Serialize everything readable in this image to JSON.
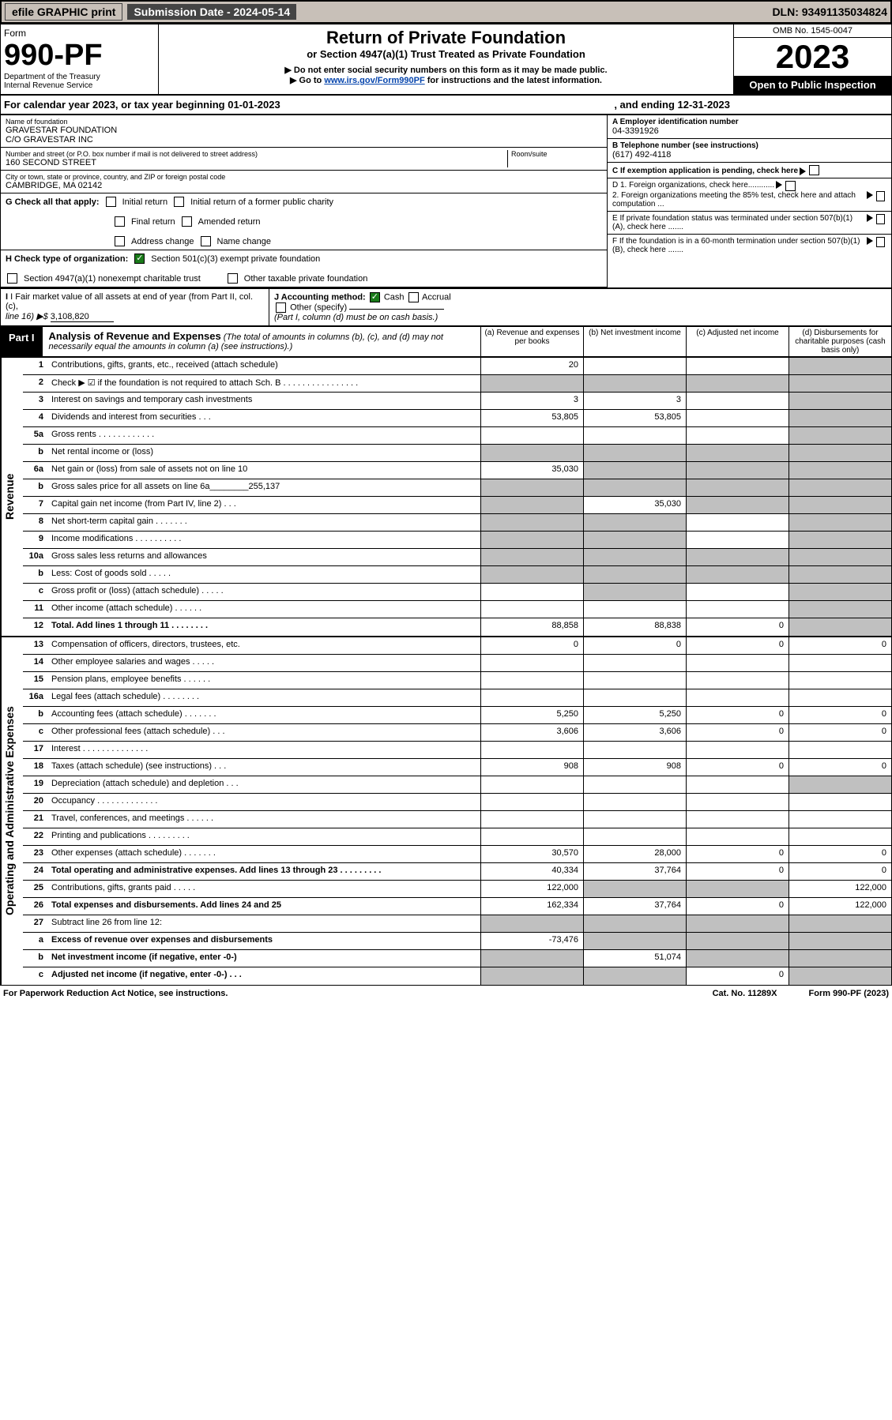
{
  "topbar": {
    "efile": "efile GRAPHIC print",
    "subdate_label": "Submission Date - 2024-05-14",
    "dln": "DLN: 93491135034824"
  },
  "header": {
    "form_label": "Form",
    "form_number": "990-PF",
    "dept": "Department of the Treasury",
    "irs": "Internal Revenue Service",
    "title": "Return of Private Foundation",
    "subtitle": "or Section 4947(a)(1) Trust Treated as Private Foundation",
    "note1": "▶ Do not enter social security numbers on this form as it may be made public.",
    "note2_pre": "▶ Go to ",
    "note2_link": "www.irs.gov/Form990PF",
    "note2_post": " for instructions and the latest information.",
    "omb": "OMB No. 1545-0047",
    "year": "2023",
    "open": "Open to Public Inspection"
  },
  "calyear": {
    "text": "For calendar year 2023, or tax year beginning 01-01-2023",
    "end": ", and ending 12-31-2023"
  },
  "id": {
    "name_label": "Name of foundation",
    "name": "GRAVESTAR FOUNDATION",
    "co": "C/O GRAVESTAR INC",
    "street_label": "Number and street (or P.O. box number if mail is not delivered to street address)",
    "street": "160 SECOND STREET",
    "room_label": "Room/suite",
    "city_label": "City or town, state or province, country, and ZIP or foreign postal code",
    "city": "CAMBRIDGE, MA  02142",
    "ein_label": "A Employer identification number",
    "ein": "04-3391926",
    "phone_label": "B Telephone number (see instructions)",
    "phone": "(617) 492-4118",
    "c_label": "C If exemption application is pending, check here"
  },
  "g": {
    "label": "G Check all that apply:",
    "opts": [
      "Initial return",
      "Initial return of a former public charity",
      "Final return",
      "Amended return",
      "Address change",
      "Name change"
    ]
  },
  "d": {
    "d1": "D 1. Foreign organizations, check here............",
    "d2": "2. Foreign organizations meeting the 85% test, check here and attach computation ...",
    "e": "E  If private foundation status was terminated under section 507(b)(1)(A), check here .......",
    "f": "F  If the foundation is in a 60-month termination under section 507(b)(1)(B), check here ......."
  },
  "h": {
    "label": "H Check type of organization:",
    "o1": "Section 501(c)(3) exempt private foundation",
    "o2": "Section 4947(a)(1) nonexempt charitable trust",
    "o3": "Other taxable private foundation"
  },
  "i": {
    "label": "I Fair market value of all assets at end of year (from Part II, col. (c),",
    "line": "line 16) ▶$",
    "value": "3,108,820"
  },
  "j": {
    "label": "J Accounting method:",
    "cash": "Cash",
    "accrual": "Accrual",
    "other": "Other (specify)",
    "note": "(Part I, column (d) must be on cash basis.)"
  },
  "part1": {
    "tag": "Part I",
    "title": "Analysis of Revenue and Expenses",
    "desc": "(The total of amounts in columns (b), (c), and (d) may not necessarily equal the amounts in column (a) (see instructions).)",
    "cols": [
      "(a)   Revenue and expenses per books",
      "(b)   Net investment income",
      "(c)   Adjusted net income",
      "(d)   Disbursements for charitable purposes (cash basis only)"
    ]
  },
  "revenue_side": "Revenue",
  "opex_side": "Operating and Administrative Expenses",
  "rows_rev": [
    {
      "n": "1",
      "t": "Contributions, gifts, grants, etc., received (attach schedule)",
      "a": "20",
      "b": "",
      "c": "",
      "d": "",
      "grey": [
        "d"
      ]
    },
    {
      "n": "2",
      "t": "Check ▶ ☑ if the foundation is not required to attach Sch. B   .  .  .  .  .  .  .  .  .  .  .  .  .  .  .  .",
      "a": "",
      "b": "",
      "c": "",
      "d": "",
      "grey": [
        "a",
        "b",
        "c",
        "d"
      ]
    },
    {
      "n": "3",
      "t": "Interest on savings and temporary cash investments",
      "a": "3",
      "b": "3",
      "c": "",
      "d": "",
      "grey": [
        "d"
      ]
    },
    {
      "n": "4",
      "t": "Dividends and interest from securities  .  .  .",
      "a": "53,805",
      "b": "53,805",
      "c": "",
      "d": "",
      "grey": [
        "d"
      ]
    },
    {
      "n": "5a",
      "t": "Gross rents   .  .  .  .  .  .  .  .  .  .  .  .",
      "a": "",
      "b": "",
      "c": "",
      "d": "",
      "grey": [
        "d"
      ]
    },
    {
      "n": "b",
      "t": "Net rental income or (loss)  ",
      "a": "",
      "b": "",
      "c": "",
      "d": "",
      "grey": [
        "a",
        "b",
        "c",
        "d"
      ]
    },
    {
      "n": "6a",
      "t": "Net gain or (loss) from sale of assets not on line 10",
      "a": "35,030",
      "b": "",
      "c": "",
      "d": "",
      "grey": [
        "b",
        "c",
        "d"
      ]
    },
    {
      "n": "b",
      "t": "Gross sales price for all assets on line 6a________255,137",
      "a": "",
      "b": "",
      "c": "",
      "d": "",
      "grey": [
        "a",
        "b",
        "c",
        "d"
      ]
    },
    {
      "n": "7",
      "t": "Capital gain net income (from Part IV, line 2)  .  .  .",
      "a": "",
      "b": "35,030",
      "c": "",
      "d": "",
      "grey": [
        "a",
        "c",
        "d"
      ]
    },
    {
      "n": "8",
      "t": "Net short-term capital gain  .  .  .  .  .  .  .",
      "a": "",
      "b": "",
      "c": "",
      "d": "",
      "grey": [
        "a",
        "b",
        "d"
      ]
    },
    {
      "n": "9",
      "t": "Income modifications .  .  .  .  .  .  .  .  .  .",
      "a": "",
      "b": "",
      "c": "",
      "d": "",
      "grey": [
        "a",
        "b",
        "d"
      ]
    },
    {
      "n": "10a",
      "t": "Gross sales less returns and allowances",
      "a": "",
      "b": "",
      "c": "",
      "d": "",
      "grey": [
        "a",
        "b",
        "c",
        "d"
      ]
    },
    {
      "n": "b",
      "t": "Less: Cost of goods sold  .  .  .  .  .",
      "a": "",
      "b": "",
      "c": "",
      "d": "",
      "grey": [
        "a",
        "b",
        "c",
        "d"
      ]
    },
    {
      "n": "c",
      "t": "Gross profit or (loss) (attach schedule)  .  .  .  .  .",
      "a": "",
      "b": "",
      "c": "",
      "d": "",
      "grey": [
        "b",
        "d"
      ]
    },
    {
      "n": "11",
      "t": "Other income (attach schedule)  .  .  .  .  .  .",
      "a": "",
      "b": "",
      "c": "",
      "d": "",
      "grey": [
        "d"
      ]
    },
    {
      "n": "12",
      "t": "Total. Add lines 1 through 11  .  .  .  .  .  .  .  .",
      "a": "88,858",
      "b": "88,838",
      "c": "0",
      "d": "",
      "grey": [
        "d"
      ],
      "bold": true
    }
  ],
  "rows_exp": [
    {
      "n": "13",
      "t": "Compensation of officers, directors, trustees, etc.",
      "a": "0",
      "b": "0",
      "c": "0",
      "d": "0"
    },
    {
      "n": "14",
      "t": "Other employee salaries and wages  .  .  .  .  .",
      "a": "",
      "b": "",
      "c": "",
      "d": ""
    },
    {
      "n": "15",
      "t": "Pension plans, employee benefits .  .  .  .  .  .",
      "a": "",
      "b": "",
      "c": "",
      "d": ""
    },
    {
      "n": "16a",
      "t": "Legal fees (attach schedule) .  .  .  .  .  .  .  .",
      "a": "",
      "b": "",
      "c": "",
      "d": ""
    },
    {
      "n": "b",
      "t": "Accounting fees (attach schedule) .  .  .  .  .  .  .",
      "a": "5,250",
      "b": "5,250",
      "c": "0",
      "d": "0"
    },
    {
      "n": "c",
      "t": "Other professional fees (attach schedule)  .  .  .",
      "a": "3,606",
      "b": "3,606",
      "c": "0",
      "d": "0"
    },
    {
      "n": "17",
      "t": "Interest .  .  .  .  .  .  .  .  .  .  .  .  .  .",
      "a": "",
      "b": "",
      "c": "",
      "d": ""
    },
    {
      "n": "18",
      "t": "Taxes (attach schedule) (see instructions)  .  .  .",
      "a": "908",
      "b": "908",
      "c": "0",
      "d": "0"
    },
    {
      "n": "19",
      "t": "Depreciation (attach schedule) and depletion  .  .  .",
      "a": "",
      "b": "",
      "c": "",
      "d": "",
      "grey": [
        "d"
      ]
    },
    {
      "n": "20",
      "t": "Occupancy .  .  .  .  .  .  .  .  .  .  .  .  .",
      "a": "",
      "b": "",
      "c": "",
      "d": ""
    },
    {
      "n": "21",
      "t": "Travel, conferences, and meetings .  .  .  .  .  .",
      "a": "",
      "b": "",
      "c": "",
      "d": ""
    },
    {
      "n": "22",
      "t": "Printing and publications .  .  .  .  .  .  .  .  .",
      "a": "",
      "b": "",
      "c": "",
      "d": ""
    },
    {
      "n": "23",
      "t": "Other expenses (attach schedule) .  .  .  .  .  .  .",
      "a": "30,570",
      "b": "28,000",
      "c": "0",
      "d": "0"
    },
    {
      "n": "24",
      "t": "Total operating and administrative expenses. Add lines 13 through 23  .  .  .  .  .  .  .  .  .",
      "a": "40,334",
      "b": "37,764",
      "c": "0",
      "d": "0",
      "bold": true
    },
    {
      "n": "25",
      "t": "Contributions, gifts, grants paid  .  .  .  .  .",
      "a": "122,000",
      "b": "",
      "c": "",
      "d": "122,000",
      "grey": [
        "b",
        "c"
      ]
    },
    {
      "n": "26",
      "t": "Total expenses and disbursements. Add lines 24 and 25",
      "a": "162,334",
      "b": "37,764",
      "c": "0",
      "d": "122,000",
      "bold": true
    },
    {
      "n": "27",
      "t": "Subtract line 26 from line 12:",
      "a": "",
      "b": "",
      "c": "",
      "d": "",
      "grey": [
        "a",
        "b",
        "c",
        "d"
      ]
    },
    {
      "n": "a",
      "t": "Excess of revenue over expenses and disbursements",
      "a": "-73,476",
      "b": "",
      "c": "",
      "d": "",
      "grey": [
        "b",
        "c",
        "d"
      ],
      "bold": true
    },
    {
      "n": "b",
      "t": "Net investment income (if negative, enter -0-)",
      "a": "",
      "b": "51,074",
      "c": "",
      "d": "",
      "grey": [
        "a",
        "c",
        "d"
      ],
      "bold": true
    },
    {
      "n": "c",
      "t": "Adjusted net income (if negative, enter -0-)  .  .  .",
      "a": "",
      "b": "",
      "c": "0",
      "d": "",
      "grey": [
        "a",
        "b",
        "d"
      ],
      "bold": true
    }
  ],
  "footer": {
    "left": "For Paperwork Reduction Act Notice, see instructions.",
    "mid": "Cat. No. 11289X",
    "right": "Form 990-PF (2023)"
  },
  "colors": {
    "topbar_bg": "#c8c0b8",
    "subdate_bg": "#444444",
    "black": "#000000",
    "grey_cell": "#c0c0c0",
    "link": "#0645ad",
    "check_green": "#1a7a1a"
  }
}
